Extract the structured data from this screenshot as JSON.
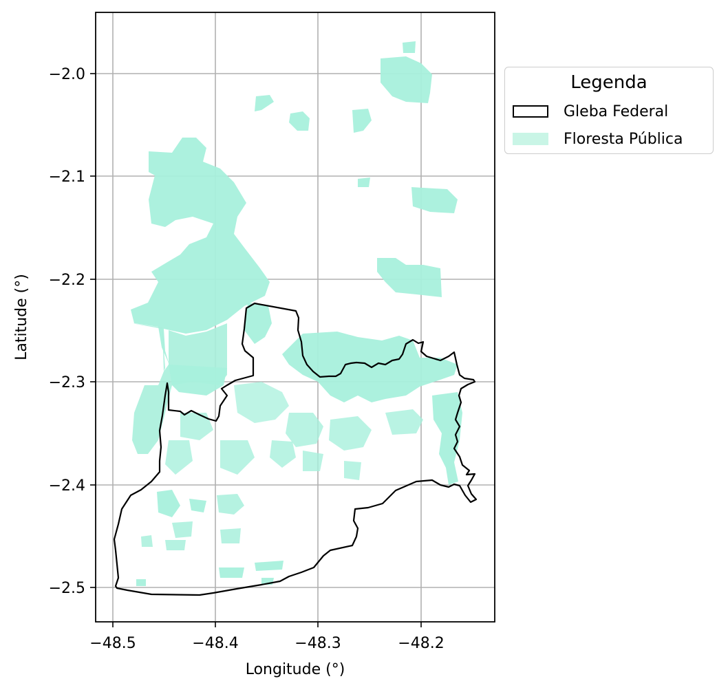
{
  "map": {
    "xlabel": "Longitude (°)",
    "ylabel": "Latitude (°)",
    "x_ticks": [
      "−48.5",
      "−48.4",
      "−48.3",
      "−48.2"
    ],
    "y_ticks": [
      "−2.0",
      "−2.1",
      "−2.2",
      "−2.3",
      "−2.4",
      "−2.5"
    ],
    "grid": true,
    "colors": {
      "forest": "#a8f0dc",
      "boundary": "#000000",
      "grid": "#b0b0b0"
    }
  },
  "legend": {
    "title": "Legenda",
    "placement": "outside-right-top",
    "items": [
      {
        "label": "Gleba Federal",
        "style": "outline"
      },
      {
        "label": "Floresta Pública",
        "style": "fill"
      }
    ]
  }
}
